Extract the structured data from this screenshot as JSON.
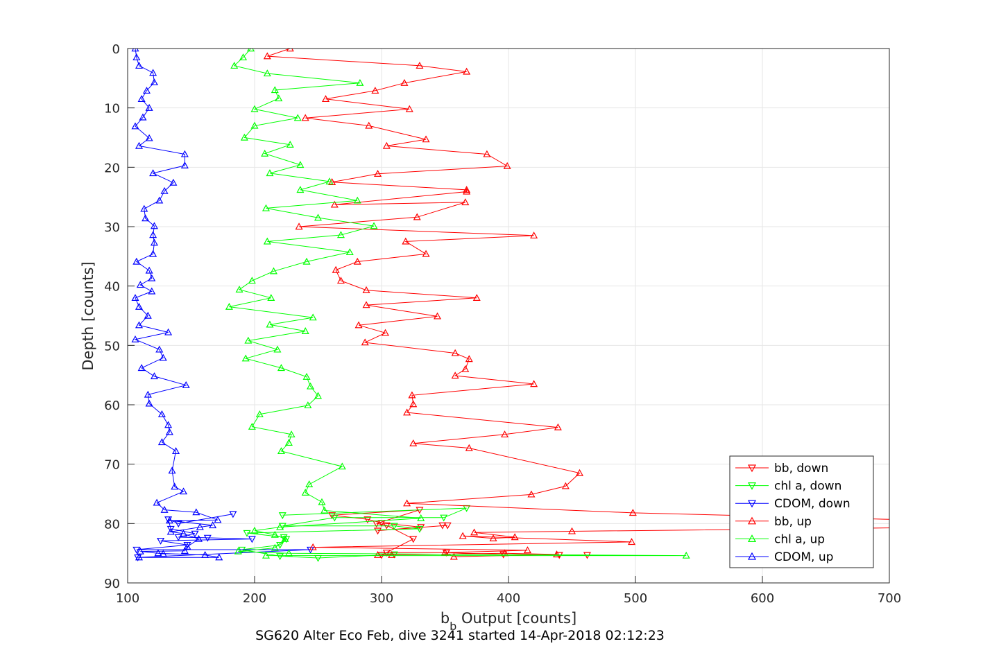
{
  "chart_data": {
    "type": "line",
    "title": "SG620 Alter Eco Feb, dive 3241 started 14-Apr-2018 02:12:23",
    "xlabel_main": "b",
    "xlabel_sub": "b",
    "xlabel_rest": " Output [counts]",
    "ylabel": "Depth [counts]",
    "xlim": [
      100,
      700
    ],
    "ylim": [
      0,
      90
    ],
    "y_reversed": true,
    "grid": true,
    "legend_position": "bottom-right",
    "xticks": [
      "100",
      "200",
      "300",
      "400",
      "500",
      "600",
      "700"
    ],
    "yticks": [
      "0",
      "10",
      "20",
      "30",
      "40",
      "50",
      "60",
      "70",
      "80",
      "90"
    ],
    "series": [
      {
        "name": "bb, down",
        "color": "#ff0000",
        "marker": "triangle-down",
        "points": [
          [
            462,
            85.3
          ],
          [
            440,
            85.3
          ],
          [
            396,
            85.2
          ],
          [
            351,
            84.9
          ],
          [
            304,
            84.9
          ],
          [
            300,
            85.3
          ],
          [
            325,
            82.6
          ],
          [
            304,
            80.3
          ],
          [
            296,
            80
          ],
          [
            330,
            77.7
          ],
          [
            261,
            78.6
          ],
          [
            289,
            79.3
          ],
          [
            300,
            79.9
          ],
          [
            331,
            80.6
          ],
          [
            297,
            81.2
          ],
          [
            352,
            80.3
          ],
          [
            348,
            80.3
          ]
        ]
      },
      {
        "name": "chl a, down",
        "color": "#00ff00",
        "marker": "triangle-down",
        "points": [
          [
            222,
            78.6
          ],
          [
            367,
            77.4
          ],
          [
            349,
            79
          ],
          [
            263,
            79
          ],
          [
            222,
            80.4
          ],
          [
            310,
            80.4
          ],
          [
            330,
            80.9
          ],
          [
            194,
            81.6
          ],
          [
            223,
            82.3
          ],
          [
            225,
            82.6
          ],
          [
            220,
            83.6
          ],
          [
            190,
            84.4
          ],
          [
            220,
            85.5
          ],
          [
            250,
            85.8
          ],
          [
            310,
            85.2
          ]
        ]
      },
      {
        "name": "CDOM, down",
        "color": "#0000ff",
        "marker": "triangle-down",
        "points": [
          [
            183,
            78.4
          ],
          [
            140,
            80
          ],
          [
            132,
            79.3
          ],
          [
            134,
            80.9
          ],
          [
            153,
            81.7
          ],
          [
            140,
            82.3
          ],
          [
            163,
            82.4
          ],
          [
            198,
            82.6
          ],
          [
            126,
            82.9
          ],
          [
            147,
            83.6
          ],
          [
            107,
            84.4
          ],
          [
            244,
            84.4
          ],
          [
            108,
            85.7
          ]
        ]
      },
      {
        "name": "bb, up",
        "color": "#ff0000",
        "marker": "triangle-up",
        "points": [
          [
            228,
            0
          ],
          [
            210,
            1.3
          ],
          [
            330,
            2.9
          ],
          [
            367,
            3.9
          ],
          [
            318,
            5.8
          ],
          [
            295,
            7.1
          ],
          [
            256,
            8.5
          ],
          [
            322,
            10.2
          ],
          [
            240,
            11.7
          ],
          [
            290,
            13
          ],
          [
            335,
            15.3
          ],
          [
            304,
            16.4
          ],
          [
            383,
            17.8
          ],
          [
            399,
            19.8
          ],
          [
            297,
            21.1
          ],
          [
            261,
            22.5
          ],
          [
            367,
            23.8
          ],
          [
            367,
            24.1
          ],
          [
            263,
            26.3
          ],
          [
            366,
            25.9
          ],
          [
            328,
            28.4
          ],
          [
            235,
            30
          ],
          [
            420,
            31.5
          ],
          [
            319,
            32.5
          ],
          [
            335,
            34.6
          ],
          [
            281,
            35.9
          ],
          [
            264,
            37.3
          ],
          [
            268,
            39.1
          ],
          [
            288,
            40.7
          ],
          [
            375,
            42
          ],
          [
            288,
            43.2
          ],
          [
            344,
            45.1
          ],
          [
            282,
            46.6
          ],
          [
            303,
            47.9
          ],
          [
            287,
            49.5
          ],
          [
            358,
            51.3
          ],
          [
            369,
            52.3
          ],
          [
            366,
            54
          ],
          [
            358,
            55.1
          ],
          [
            420,
            56.5
          ],
          [
            324,
            58.4
          ],
          [
            325,
            59.9
          ],
          [
            320,
            61.3
          ],
          [
            439,
            63.8
          ],
          [
            397,
            65
          ],
          [
            325,
            66.5
          ],
          [
            369,
            67.3
          ],
          [
            456,
            71.5
          ],
          [
            445,
            73.7
          ],
          [
            418,
            75.1
          ],
          [
            320,
            76.6
          ],
          [
            498,
            78.2
          ],
          [
            720,
            79.4
          ],
          [
            720,
            80.7
          ],
          [
            450,
            81.3
          ],
          [
            373,
            81.5
          ],
          [
            405,
            82.3
          ],
          [
            388,
            82.5
          ],
          [
            364,
            82.1
          ],
          [
            497,
            83.1
          ],
          [
            246,
            84
          ],
          [
            415,
            84.5
          ],
          [
            350,
            84.9
          ],
          [
            357,
            85.6
          ],
          [
            438,
            85.2
          ],
          [
            397,
            85
          ],
          [
            297,
            85.3
          ],
          [
            308,
            85.3
          ]
        ]
      },
      {
        "name": "chl a, up",
        "color": "#00ff00",
        "marker": "triangle-up",
        "points": [
          [
            197,
            0
          ],
          [
            191,
            1.5
          ],
          [
            184,
            2.9
          ],
          [
            210,
            4.2
          ],
          [
            283,
            5.8
          ],
          [
            216,
            7
          ],
          [
            219,
            8.4
          ],
          [
            200,
            10.2
          ],
          [
            234,
            11.7
          ],
          [
            200,
            13
          ],
          [
            192,
            15
          ],
          [
            228,
            16.2
          ],
          [
            208,
            17.7
          ],
          [
            236,
            19.6
          ],
          [
            212,
            21
          ],
          [
            259,
            22.4
          ],
          [
            236,
            23.8
          ],
          [
            281,
            25.6
          ],
          [
            209,
            26.9
          ],
          [
            250,
            28.5
          ],
          [
            294,
            29.9
          ],
          [
            268,
            31.4
          ],
          [
            210,
            32.5
          ],
          [
            275,
            34.3
          ],
          [
            241,
            35.9
          ],
          [
            215,
            37.5
          ],
          [
            198,
            39.1
          ],
          [
            188,
            40.6
          ],
          [
            213,
            42
          ],
          [
            180,
            43.5
          ],
          [
            246,
            45.3
          ],
          [
            212,
            46.5
          ],
          [
            240,
            47.6
          ],
          [
            195,
            49.2
          ],
          [
            218,
            50.7
          ],
          [
            193,
            52.2
          ],
          [
            221,
            53.8
          ],
          [
            241,
            55.3
          ],
          [
            244,
            56.9
          ],
          [
            250,
            58.5
          ],
          [
            242,
            60.1
          ],
          [
            204,
            61.6
          ],
          [
            198,
            63.7
          ],
          [
            229,
            65
          ],
          [
            227,
            66.4
          ],
          [
            221,
            67.8
          ],
          [
            269,
            70.4
          ],
          [
            243,
            73.4
          ],
          [
            240,
            74.8
          ],
          [
            253,
            76.4
          ],
          [
            255,
            77.8
          ],
          [
            331,
            79.1
          ],
          [
            220,
            80.6
          ],
          [
            200,
            81.2
          ],
          [
            216,
            81.9
          ],
          [
            224,
            82.6
          ],
          [
            216,
            84.1
          ],
          [
            187,
            84.7
          ],
          [
            227,
            85
          ],
          [
            540,
            85.4
          ],
          [
            209,
            85.4
          ]
        ]
      },
      {
        "name": "CDOM, up",
        "color": "#0000ff",
        "marker": "triangle-up",
        "points": [
          [
            106,
            0
          ],
          [
            107,
            1.5
          ],
          [
            109,
            2.9
          ],
          [
            120,
            4.1
          ],
          [
            121,
            5.7
          ],
          [
            115,
            7.1
          ],
          [
            111,
            8.5
          ],
          [
            117,
            10
          ],
          [
            112,
            11.6
          ],
          [
            106,
            13.1
          ],
          [
            117,
            15.1
          ],
          [
            109,
            16.4
          ],
          [
            145,
            17.8
          ],
          [
            145,
            19.7
          ],
          [
            120,
            21
          ],
          [
            136,
            22.6
          ],
          [
            129,
            24
          ],
          [
            125,
            25.6
          ],
          [
            113,
            27
          ],
          [
            114,
            28.6
          ],
          [
            121,
            29.9
          ],
          [
            120,
            31.4
          ],
          [
            121,
            32.7
          ],
          [
            120,
            34.6
          ],
          [
            107,
            35.9
          ],
          [
            117,
            37.4
          ],
          [
            119,
            38.7
          ],
          [
            110,
            39.8
          ],
          [
            119,
            40.9
          ],
          [
            106,
            42
          ],
          [
            109,
            43.5
          ],
          [
            116,
            45
          ],
          [
            109,
            46.6
          ],
          [
            132,
            47.8
          ],
          [
            106,
            49
          ],
          [
            125,
            50.7
          ],
          [
            128,
            52.1
          ],
          [
            111,
            53.8
          ],
          [
            121,
            55.2
          ],
          [
            146,
            56.7
          ],
          [
            116,
            58.3
          ],
          [
            117,
            59.8
          ],
          [
            127,
            61.6
          ],
          [
            132,
            63.4
          ],
          [
            133,
            64.6
          ],
          [
            127,
            66.3
          ],
          [
            138,
            67.8
          ],
          [
            135,
            71.1
          ],
          [
            137,
            73.8
          ],
          [
            144,
            74.6
          ],
          [
            123,
            76.5
          ],
          [
            129,
            77.7
          ],
          [
            154,
            78.1
          ],
          [
            171,
            79.4
          ],
          [
            133,
            79.5
          ],
          [
            167,
            80.3
          ],
          [
            157,
            80.6
          ],
          [
            134,
            81.4
          ],
          [
            144,
            81.7
          ],
          [
            156,
            82.6
          ],
          [
            147,
            83.9
          ],
          [
            145,
            84.6
          ],
          [
            110,
            84.7
          ],
          [
            128,
            85.1
          ],
          [
            124,
            85
          ],
          [
            161,
            85.3
          ],
          [
            172,
            85.7
          ],
          [
            109,
            85.7
          ]
        ]
      }
    ]
  }
}
